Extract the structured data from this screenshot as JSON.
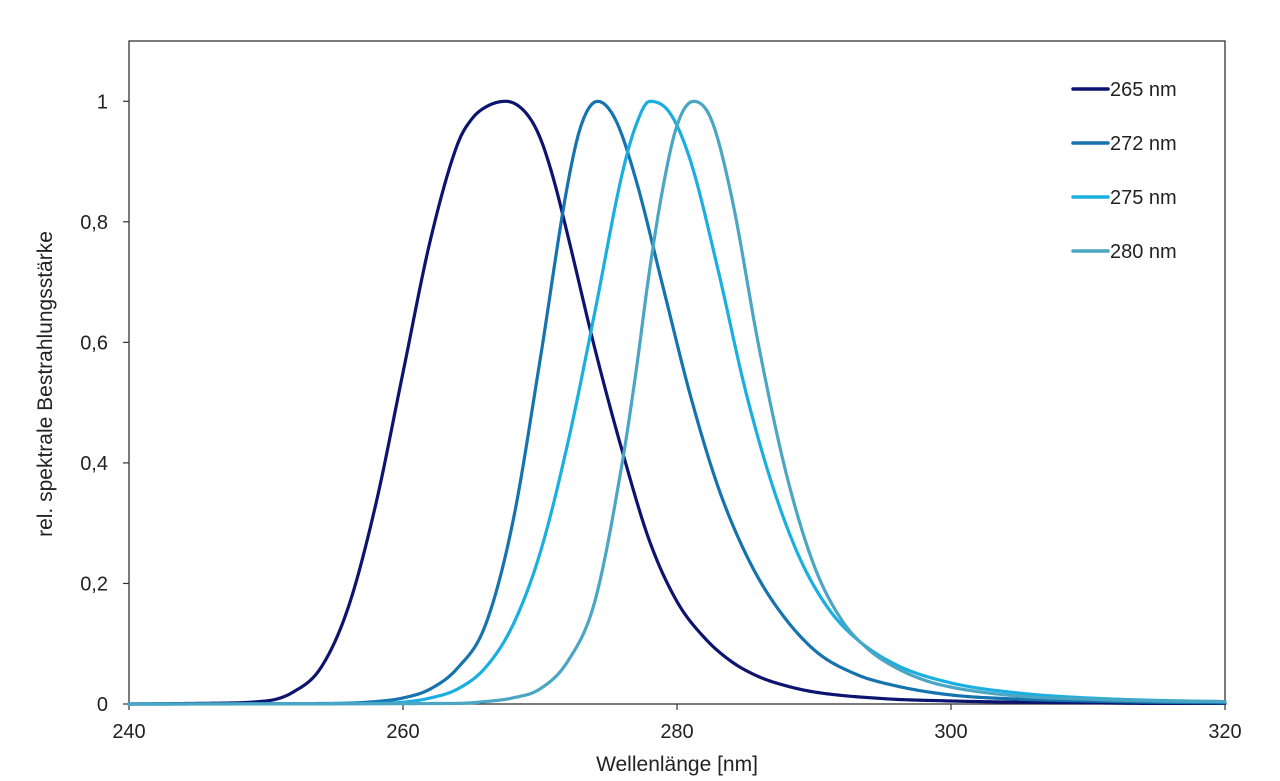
{
  "chart_data": {
    "type": "line",
    "xlabel": "Wellenlänge [nm]",
    "ylabel": "rel. spektrale Bestrahlungsstärke",
    "xlim": [
      240,
      320
    ],
    "ylim": [
      0,
      1.1
    ],
    "xticks": [
      240,
      260,
      280,
      300,
      320
    ],
    "xtick_labels": [
      "240",
      "260",
      "280",
      "300",
      "320"
    ],
    "yticks": [
      0,
      0.2,
      0.4,
      0.6,
      0.8,
      1
    ],
    "ytick_labels": [
      "0",
      "0,2",
      "0,4",
      "0,6",
      "0,8",
      "1"
    ],
    "grid": false,
    "legend_position": "top-right",
    "series": [
      {
        "name": "265 nm",
        "color": "#0d1470",
        "x": [
          240,
          245,
          250,
          252,
          254,
          256,
          258,
          260,
          262,
          264,
          265,
          266,
          267.5,
          269,
          270,
          271,
          272,
          274,
          276,
          278,
          280,
          282,
          284,
          286,
          288,
          290,
          295,
          300,
          305,
          310,
          315,
          320
        ],
        "y": [
          0,
          0.001,
          0.005,
          0.02,
          0.06,
          0.16,
          0.33,
          0.55,
          0.77,
          0.93,
          0.97,
          0.99,
          1.0,
          0.98,
          0.94,
          0.87,
          0.78,
          0.59,
          0.42,
          0.27,
          0.17,
          0.11,
          0.07,
          0.045,
          0.03,
          0.02,
          0.009,
          0.005,
          0.003,
          0.002,
          0.001,
          0.001
        ]
      },
      {
        "name": "272 nm",
        "color": "#1573ae",
        "x": [
          240,
          255,
          258,
          260,
          262,
          264,
          266,
          268,
          270,
          272,
          273,
          274.2,
          275.5,
          277,
          279,
          281,
          283,
          285,
          287,
          290,
          293,
          296,
          300,
          305,
          310,
          315,
          320
        ],
        "y": [
          0,
          0.001,
          0.004,
          0.01,
          0.025,
          0.06,
          0.13,
          0.3,
          0.57,
          0.86,
          0.96,
          1.0,
          0.97,
          0.87,
          0.69,
          0.51,
          0.36,
          0.25,
          0.17,
          0.09,
          0.05,
          0.03,
          0.015,
          0.008,
          0.005,
          0.003,
          0.002
        ]
      },
      {
        "name": "275 nm",
        "color": "#1aafe0",
        "x": [
          240,
          258,
          260,
          262,
          264,
          266,
          268,
          270,
          272,
          274,
          276,
          277,
          278,
          279.5,
          281,
          283,
          285,
          287,
          289,
          291,
          293,
          296,
          300,
          305,
          310,
          315,
          320
        ],
        "y": [
          0,
          0.001,
          0.003,
          0.01,
          0.025,
          0.06,
          0.13,
          0.25,
          0.43,
          0.65,
          0.88,
          0.96,
          1.0,
          0.98,
          0.9,
          0.72,
          0.52,
          0.36,
          0.24,
          0.16,
          0.11,
          0.065,
          0.035,
          0.018,
          0.01,
          0.006,
          0.004
        ]
      },
      {
        "name": "280 nm",
        "color": "#4aa6c2",
        "x": [
          240,
          264,
          266,
          268,
          270,
          272,
          274,
          276,
          277,
          278,
          279,
          280,
          281.2,
          282.5,
          284,
          286,
          288,
          290,
          292,
          294,
          296,
          298,
          300,
          305,
          310,
          315,
          320
        ],
        "y": [
          0,
          0.001,
          0.004,
          0.01,
          0.025,
          0.07,
          0.17,
          0.4,
          0.55,
          0.72,
          0.86,
          0.96,
          1.0,
          0.97,
          0.84,
          0.59,
          0.38,
          0.23,
          0.14,
          0.09,
          0.06,
          0.04,
          0.028,
          0.013,
          0.008,
          0.005,
          0.004
        ]
      }
    ]
  }
}
